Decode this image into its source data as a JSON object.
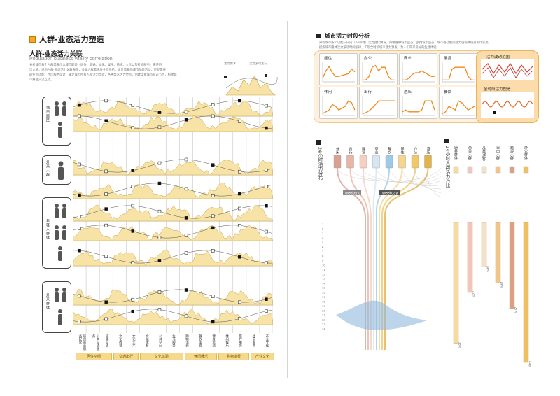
{
  "left": {
    "section_title": "人群-业态活力塑造",
    "heading": "人群-业态活力关联",
    "subheading": "Population business vitality correlation",
    "paragraph": [
      "分析城市每个人群需要什么城市职能（居住、交通、文化、娱乐、购物、文化以及社会服务）来使用",
      "活力值，组构人群-业态活力关联表单，关联人群需求与业态供给，设计需要的城市功能活动，匹配需要",
      "的业态功能，社区服务设计，满足城市所有人群活力塑造，各种需求活力塑造，创建丰富城市业态节点，构建城",
      "市舞台交流互动。"
    ],
    "mini_labels": [
      "活力需求",
      "活力波动走向"
    ],
    "groups": [
      "城市居民",
      "外来人群",
      "年轻人群体",
      "外来群体"
    ],
    "categories": [
      "居住\n商业\n服务\n配套",
      "公共\n交通\n服务",
      "道路\n交通",
      "文化\n教育",
      "文化\n艺术",
      "文化\n体育",
      "公共\n空间",
      "生活\n服务",
      "购物\n消费",
      "餐饮\n美食",
      "健身\n运动",
      "休闲\n娱乐",
      "医疗\n服务",
      "社区\n服务",
      "产业\n文化"
    ],
    "pills": [
      "居住空间",
      "交通出行",
      "文化体验",
      "休闲娱乐",
      "购物消费",
      "产业文化"
    ],
    "colors": {
      "fill": "#f7e3a6",
      "stroke": "#caa24a",
      "line": "#555555"
    }
  },
  "right": {
    "section_title": "城市活力时段分析",
    "paragraph": [
      "分析城市各个功能一日内（24小时）活力变化情况，归纳各种城市业态，多维城市业态，城市各功能间活力强弱峰值分析比较点，",
      "提炼城市整体活力波动时间规律，实现全时段城市活力激发，为人们带来良好的生活体验"
    ],
    "functions": [
      {
        "name": "居住",
        "series": [
          0.2,
          0.6,
          0.85,
          0.5,
          0.3,
          0.3,
          0.35,
          0.4,
          0.45,
          0.7,
          0.55
        ]
      },
      {
        "name": "办公",
        "series": [
          0.1,
          0.1,
          0.3,
          0.8,
          0.9,
          0.6,
          0.8,
          0.8,
          0.3,
          0.1,
          0.1
        ]
      },
      {
        "name": "商业",
        "series": [
          0.1,
          0.1,
          0.2,
          0.4,
          0.5,
          0.5,
          0.6,
          0.5,
          0.4,
          0.3,
          0.3
        ]
      },
      {
        "name": "展览",
        "series": [
          0.1,
          0.1,
          0.1,
          0.7,
          0.8,
          0.8,
          0.8,
          0.8,
          0.3,
          0.1,
          0.1
        ]
      },
      {
        "name": "休闲",
        "series": [
          0.1,
          0.2,
          0.3,
          0.6,
          0.5,
          0.3,
          0.4,
          0.5,
          0.8,
          0.7,
          0.3
        ]
      },
      {
        "name": "出行",
        "series": [
          0.1,
          0.15,
          0.25,
          0.4,
          0.6,
          0.8,
          0.8,
          0.8,
          0.8,
          0.8,
          0.8
        ]
      },
      {
        "name": "酒店",
        "series": [
          0.2,
          0.3,
          0.2,
          0.2,
          0.2,
          0.2,
          0.3,
          0.8,
          0.8,
          0.8,
          0.3
        ]
      },
      {
        "name": "餐饮",
        "series": [
          0.1,
          0.2,
          0.5,
          0.4,
          0.3,
          0.8,
          0.7,
          0.5,
          0.3,
          0.4,
          0.5
        ]
      }
    ],
    "wave_titles": [
      "活力波动范围",
      "全时段活力塑造"
    ],
    "flow_title": "24小时活力分布",
    "flow_nodes": [
      "休闲",
      "出行",
      "展览",
      "商业",
      "餐饮",
      "居住",
      "办公",
      "酒店"
    ],
    "flow_node_colors": [
      "#dba190",
      "#e8b6a6",
      "#f4cfc2",
      "#d6e6f2",
      "#9ecae8",
      "#f6d58d",
      "#f0c86a",
      "#e4b24a"
    ],
    "flow_tags": [
      "weekend",
      "weekday"
    ],
    "hours": [
      "1",
      "2",
      "3",
      "4",
      "5",
      "6",
      "7",
      "8",
      "9",
      "10",
      "11",
      "12",
      "13",
      "14",
      "15",
      "16",
      "17",
      "18",
      "19",
      "20",
      "21",
      "22",
      "23",
      "24"
    ],
    "ratio_title": "24小时人群活力占比",
    "ratio_groups": [
      {
        "name": "康养群体",
        "pct": "38%",
        "value": 38,
        "color": "#f6dba0"
      },
      {
        "name": "商务人群",
        "pct": "22%",
        "value": 22,
        "color": "#f2c6bd"
      },
      {
        "name": "儿童/游客",
        "pct": "14%",
        "value": 14,
        "color": "#f4dfc8"
      },
      {
        "name": "自由人群",
        "pct": "19%",
        "value": 19,
        "color": "#f1c48a"
      },
      {
        "name": "旅游人群",
        "pct": "27%",
        "value": 27,
        "color": "#dba186"
      },
      {
        "name": "办公群体",
        "pct": "44%",
        "value": 44,
        "color": "#f0c060"
      }
    ]
  }
}
